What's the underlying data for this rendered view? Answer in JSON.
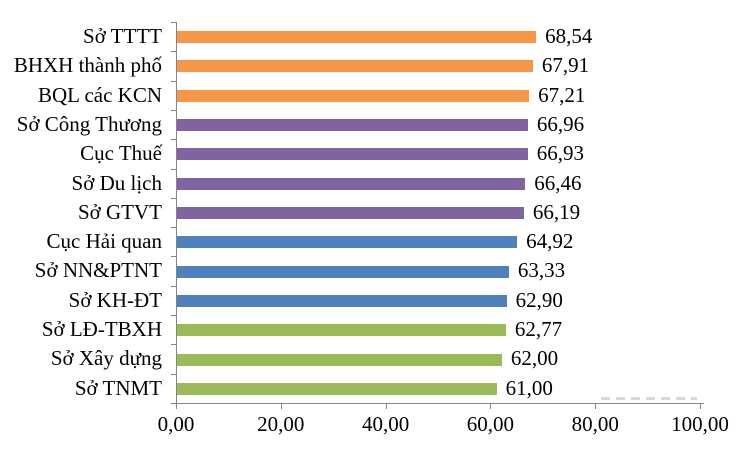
{
  "chart_data": {
    "type": "bar",
    "orientation": "horizontal",
    "title": "",
    "xlabel": "",
    "ylabel": "",
    "xlim": [
      0,
      100
    ],
    "grid": false,
    "legend": "none",
    "decimal_separator": ",",
    "categories": [
      "Sở TTTT",
      "BHXH thành phố",
      "BQL các KCN",
      "Sở Công Thương",
      "Cục Thuế",
      "Sở Du lịch",
      "Sở GTVT",
      "Cục Hải quan",
      "Sở NN&PTNT",
      "Sở KH-ĐT",
      "Sở LĐ-TBXH",
      "Sở Xây dựng",
      "Sở TNMT"
    ],
    "values": [
      68.54,
      67.91,
      67.21,
      66.96,
      66.93,
      66.46,
      66.19,
      64.92,
      63.33,
      62.9,
      62.77,
      62.0,
      61.0
    ],
    "value_labels": [
      "68,54",
      "67,91",
      "67,21",
      "66,96",
      "66,93",
      "66,46",
      "66,19",
      "64,92",
      "63,33",
      "62,90",
      "62,77",
      "62,00",
      "61,00"
    ],
    "bar_color_keys": [
      "orange",
      "orange",
      "orange",
      "purple",
      "purple",
      "purple",
      "purple",
      "blue",
      "blue",
      "blue",
      "green",
      "green",
      "green"
    ],
    "palette": {
      "orange": "#F79646",
      "purple": "#8064A2",
      "blue": "#4F81BD",
      "green": "#9BBB59"
    },
    "x_ticks": {
      "values": [
        0,
        20,
        40,
        60,
        80,
        100
      ],
      "labels": [
        "0,00",
        "20,00",
        "40,00",
        "60,00",
        "80,00",
        "100,00"
      ]
    },
    "axis_color": "#848484",
    "text_color": "#000000"
  }
}
